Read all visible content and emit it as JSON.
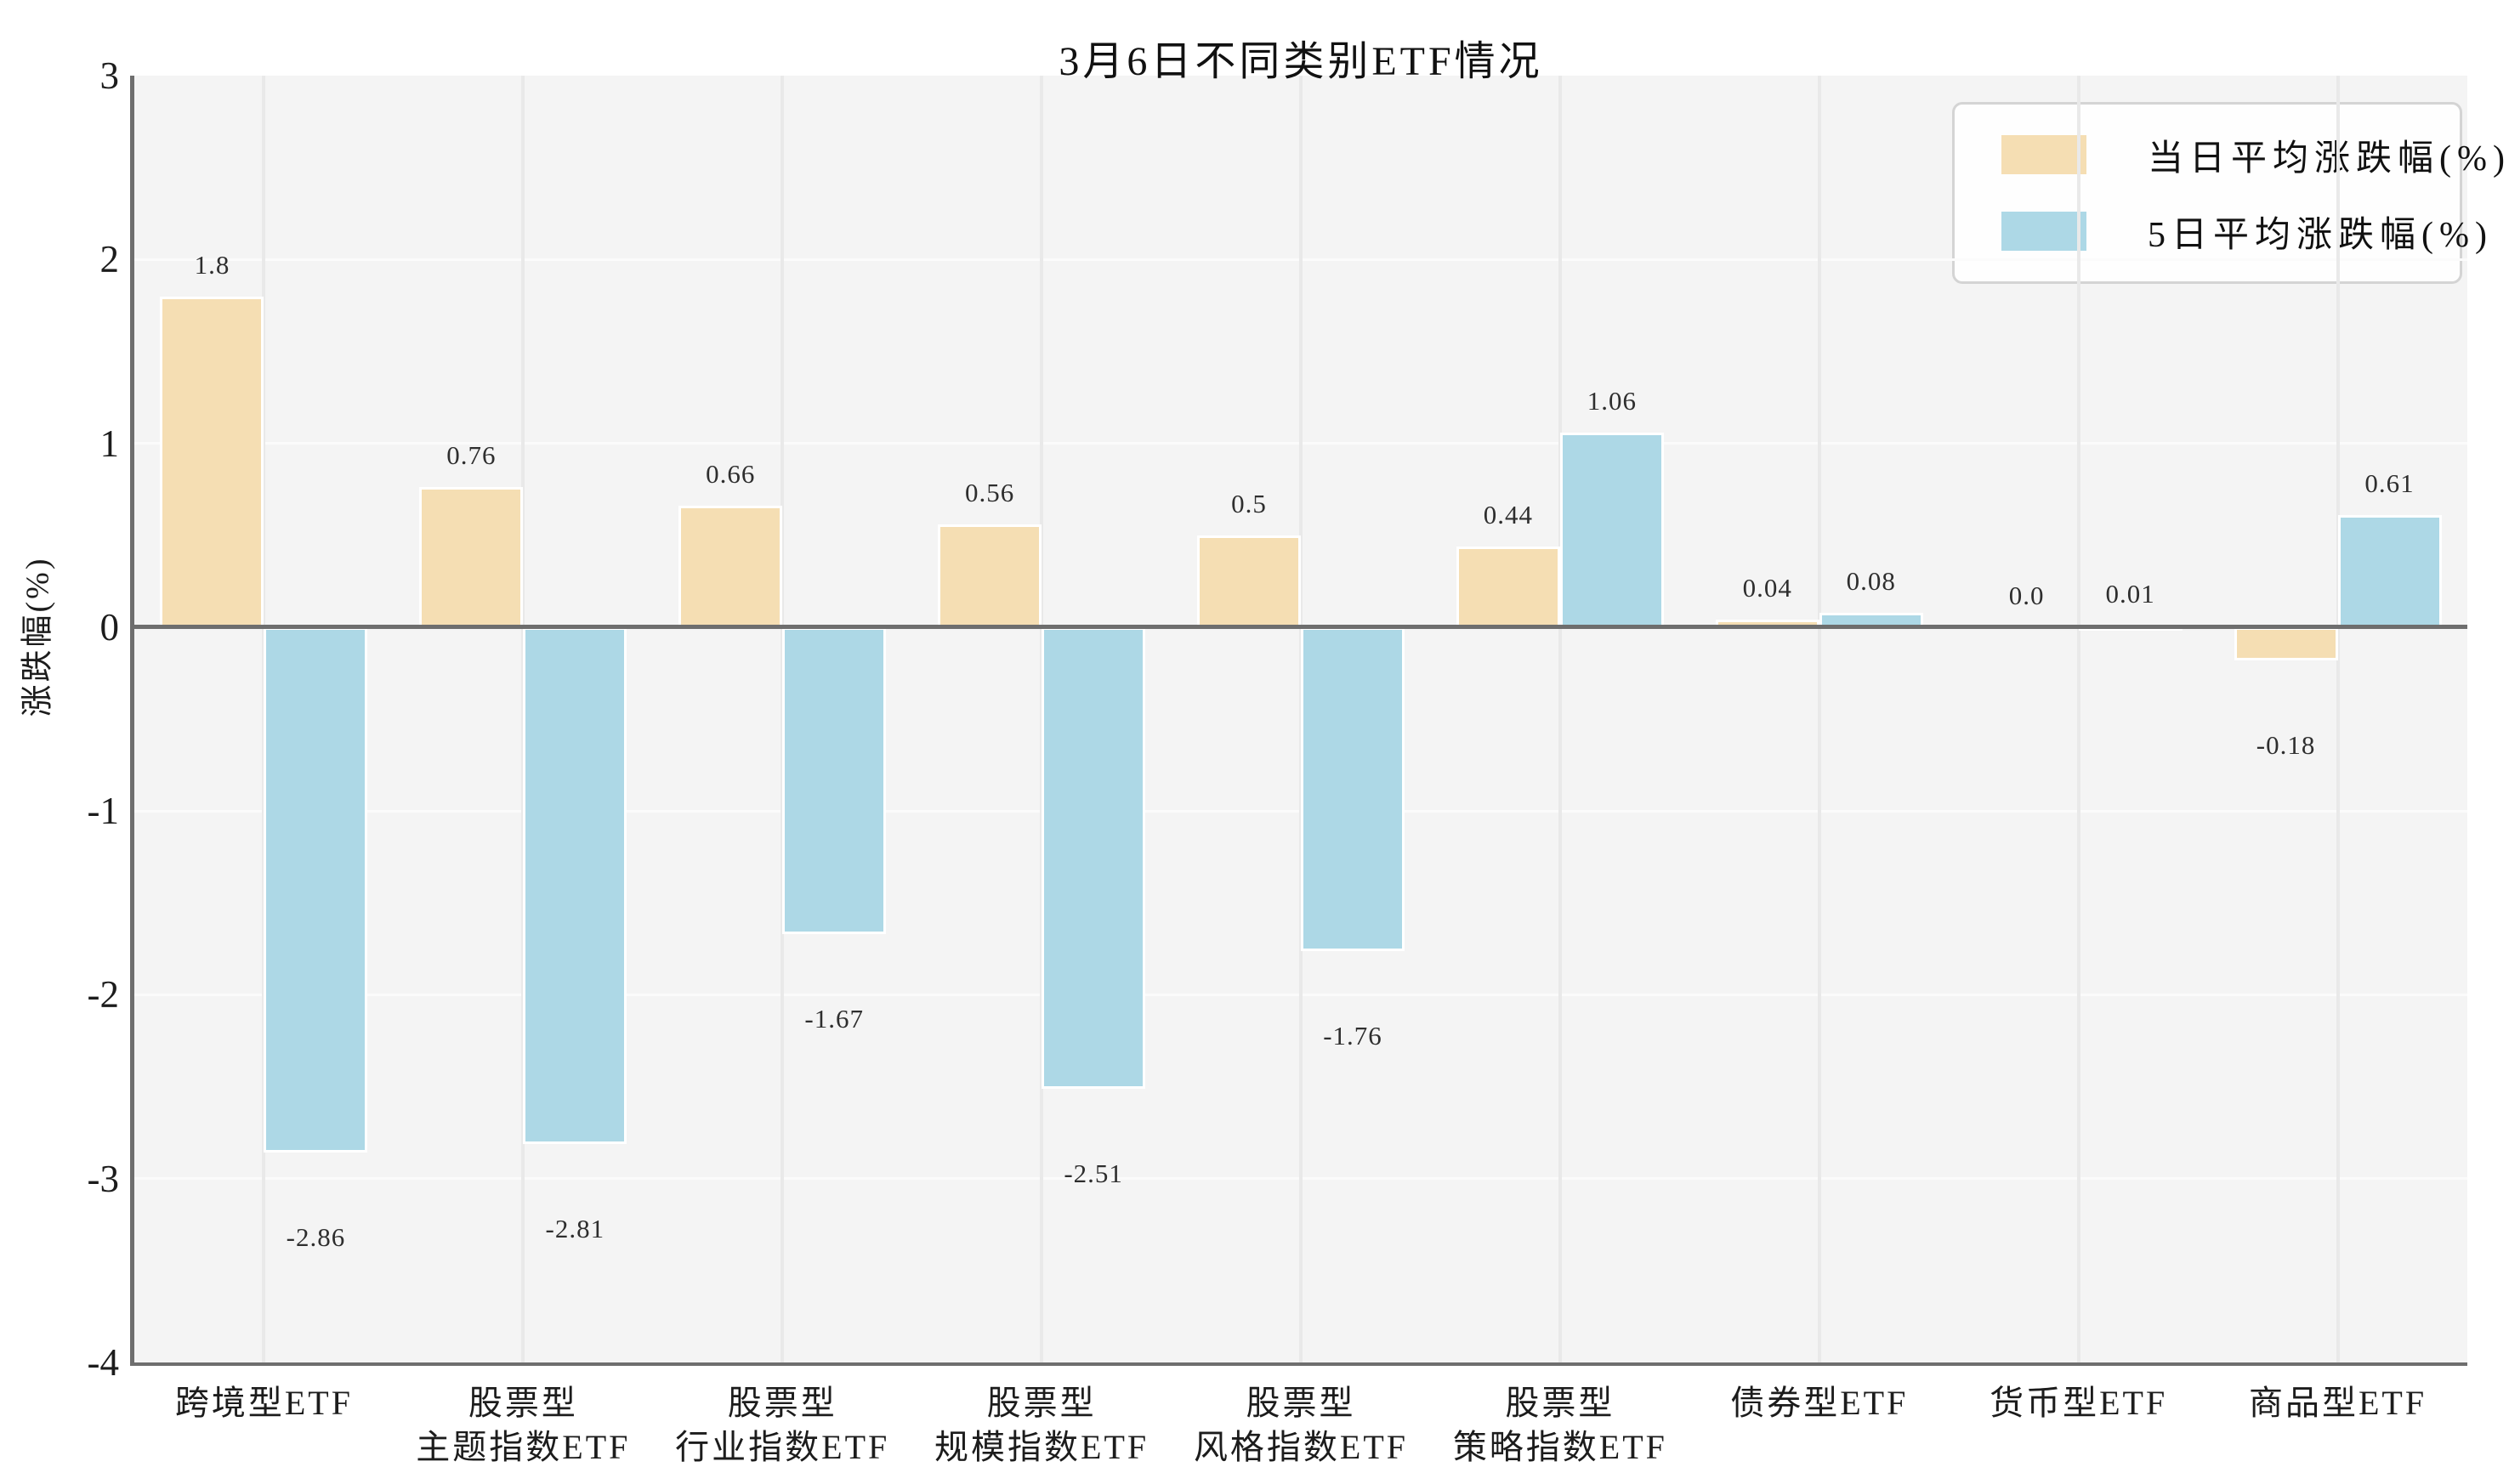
{
  "chart_data": {
    "type": "bar",
    "title": "3月6日不同类别ETF情况",
    "ylabel": "涨跌幅(%)",
    "xlabel": "",
    "ylim": [
      -4,
      3
    ],
    "yticks": [
      "3",
      "2",
      "1",
      "0",
      "-1",
      "-2",
      "-3",
      "-4"
    ],
    "grid": true,
    "legend_position": "upper right",
    "categories": [
      [
        "跨境型ETF"
      ],
      [
        "股票型",
        "主题指数ETF"
      ],
      [
        "股票型",
        "行业指数ETF"
      ],
      [
        "股票型",
        "规模指数ETF"
      ],
      [
        "股票型",
        "风格指数ETF"
      ],
      [
        "股票型",
        "策略指数ETF"
      ],
      [
        "债券型ETF"
      ],
      [
        "货币型ETF"
      ],
      [
        "商品型ETF"
      ]
    ],
    "series": [
      {
        "name": "当日平均涨跌幅(%)",
        "color": "#f5deb3",
        "values": [
          1.8,
          0.76,
          0.66,
          0.56,
          0.5,
          0.44,
          0.04,
          0.0,
          -0.18
        ],
        "labels": [
          "1.8",
          "0.76",
          "0.66",
          "0.56",
          "0.5",
          "0.44",
          "0.04",
          "0.0",
          "-0.18"
        ]
      },
      {
        "name": "5日平均涨跌幅(%)",
        "color": "#add8e6",
        "values": [
          -2.86,
          -2.81,
          -1.67,
          -2.51,
          -1.76,
          1.06,
          0.08,
          0.01,
          0.61
        ],
        "labels": [
          "-2.86",
          "-2.81",
          "-1.67",
          "-2.51",
          "-1.76",
          "1.06",
          "0.08",
          "0.01",
          "0.61"
        ]
      }
    ]
  },
  "style": {
    "plot_background": "#f4f4f4",
    "horizontal_grid_color": "#fbfbfb",
    "vertical_grid_color": "#e9e9e9",
    "spine_color": "#6e6e6e",
    "bar_edge_color": "#ffffff",
    "legend_border_color": "#d4d4d4",
    "text_color": "#1c1c1c"
  }
}
